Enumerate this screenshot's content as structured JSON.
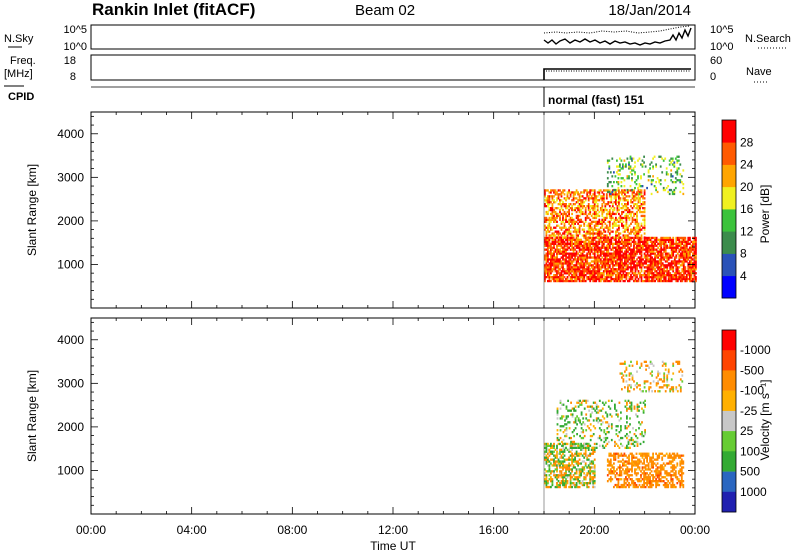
{
  "header": {
    "station": "Rankin Inlet (fitACF)",
    "beam": "Beam 02",
    "date": "18/Jan/2014"
  },
  "top_panels": {
    "noise": {
      "left_label": "N.Sky",
      "right_label": "N.Search",
      "left_ticks": [
        "10^5",
        "10^0"
      ],
      "right_ticks": [
        "10^5",
        "10^0"
      ]
    },
    "freq": {
      "left_label": "Freq.",
      "left_unit": "[MHz]",
      "right_label": "Nave",
      "left_ticks": [
        "18",
        "8"
      ],
      "right_ticks": [
        "60",
        "0"
      ]
    },
    "cpid": {
      "label": "CPID",
      "mode_text": "normal (fast) 151"
    }
  },
  "x_axis": {
    "label": "Time UT",
    "ticks": [
      "00:00",
      "04:00",
      "08:00",
      "12:00",
      "16:00",
      "20:00",
      "00:00"
    ]
  },
  "colorbars": {
    "power": {
      "label": "Power [dB]",
      "colors": [
        "#0000ff",
        "#2a52b8",
        "#3c8c4c",
        "#3cc33c",
        "#f0f020",
        "#ffa500",
        "#ff5a00",
        "#ff0000"
      ],
      "ticks": [
        "4",
        "8",
        "12",
        "16",
        "20",
        "24",
        "28"
      ]
    },
    "velocity": {
      "label": "Velocity [m s⁻¹]",
      "colors": [
        "#ff0000",
        "#ff4400",
        "#ff8c00",
        "#ffb000",
        "#c8c8c8",
        "#66cc33",
        "#33aa33",
        "#2a66c0",
        "#2020b0"
      ],
      "ticks": [
        "-1000",
        "-500",
        "-100",
        "-25",
        "25",
        "100",
        "500",
        "1000"
      ]
    }
  },
  "chart_data": [
    {
      "type": "heatmap",
      "title": "Power",
      "xlabel": "",
      "ylabel": "Slant Range [km]",
      "xlim": [
        0,
        24
      ],
      "ylim": [
        0,
        4500
      ],
      "y_ticks": [
        1000,
        2000,
        3000,
        4000
      ],
      "colorbar_label": "Power [dB]",
      "clim": [
        0,
        32
      ],
      "data_start_hour": 18,
      "echo_regions": [
        {
          "t_start": 18.0,
          "t_end": 24.0,
          "range_km": [
            600,
            1600
          ],
          "typical_db": 28
        },
        {
          "t_start": 18.0,
          "t_end": 22.0,
          "range_km": [
            1600,
            2700
          ],
          "typical_db": 24
        },
        {
          "t_start": 20.5,
          "t_end": 23.5,
          "range_km": [
            2600,
            3500
          ],
          "typical_db": 14
        }
      ]
    },
    {
      "type": "heatmap",
      "title": "Velocity",
      "xlabel": "Time UT",
      "ylabel": "Slant Range [km]",
      "xlim": [
        0,
        24
      ],
      "ylim": [
        0,
        4500
      ],
      "y_ticks": [
        1000,
        2000,
        3000,
        4000
      ],
      "colorbar_label": "Velocity [m s⁻¹]",
      "clim": [
        -1000,
        1000
      ],
      "data_start_hour": 18,
      "echo_regions": [
        {
          "t_start": 18.0,
          "t_end": 20.0,
          "range_km": [
            600,
            1600
          ],
          "typical_velocity": 0
        },
        {
          "t_start": 20.5,
          "t_end": 23.5,
          "range_km": [
            600,
            1400
          ],
          "typical_velocity": -300
        },
        {
          "t_start": 18.5,
          "t_end": 22.0,
          "range_km": [
            1500,
            2600
          ],
          "typical_velocity": 80
        },
        {
          "t_start": 21.0,
          "t_end": 23.5,
          "range_km": [
            2800,
            3500
          ],
          "typical_velocity": -150
        }
      ]
    }
  ]
}
